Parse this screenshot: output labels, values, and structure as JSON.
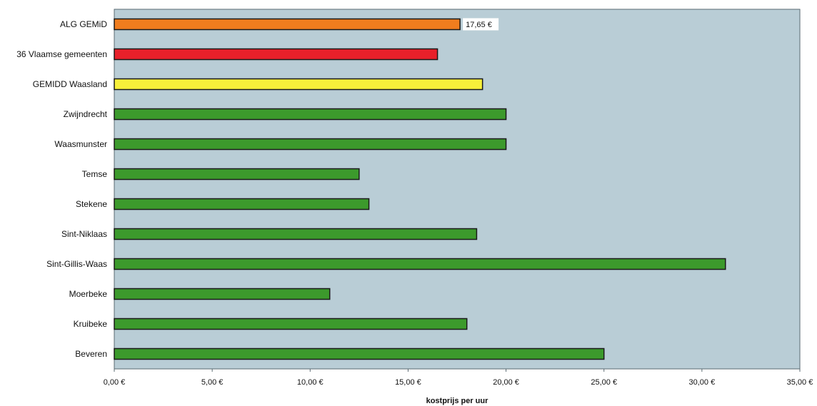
{
  "chart_data": {
    "type": "bar",
    "orientation": "horizontal",
    "categories": [
      "ALG GEMiD",
      "36 Vlaamse gemeenten",
      "GEMIDD Waasland",
      "Zwijndrecht",
      "Waasmunster",
      "Temse",
      "Stekene",
      "Sint-Niklaas",
      "Sint-Gillis-Waas",
      "Moerbeke",
      "Kruibeke",
      "Beveren"
    ],
    "values": [
      17.65,
      16.5,
      18.8,
      20.0,
      20.0,
      12.5,
      13.0,
      18.5,
      31.2,
      11.0,
      18.0,
      25.0
    ],
    "bar_colors": [
      "#f07d1e",
      "#e8202a",
      "#f7f03a",
      "#3c9a2c",
      "#3c9a2c",
      "#3c9a2c",
      "#3c9a2c",
      "#3c9a2c",
      "#3c9a2c",
      "#3c9a2c",
      "#3c9a2c",
      "#3c9a2c"
    ],
    "data_labels": [
      {
        "category": "ALG GEMiD",
        "text": "17,65 €"
      }
    ],
    "xlim": [
      0,
      35
    ],
    "x_ticks": [
      0,
      5,
      10,
      15,
      20,
      25,
      30,
      35
    ],
    "x_tick_labels": [
      "0,00 €",
      "5,00 €",
      "10,00 €",
      "15,00 €",
      "20,00 €",
      "25,00 €",
      "30,00 €",
      "35,00 €"
    ],
    "xlabel": "kostprijs per uur",
    "ylabel": "",
    "title": "",
    "grid": false,
    "legend": "none",
    "plot_background": "#b9cdd6",
    "bar_outline": "#1a1a1a"
  }
}
